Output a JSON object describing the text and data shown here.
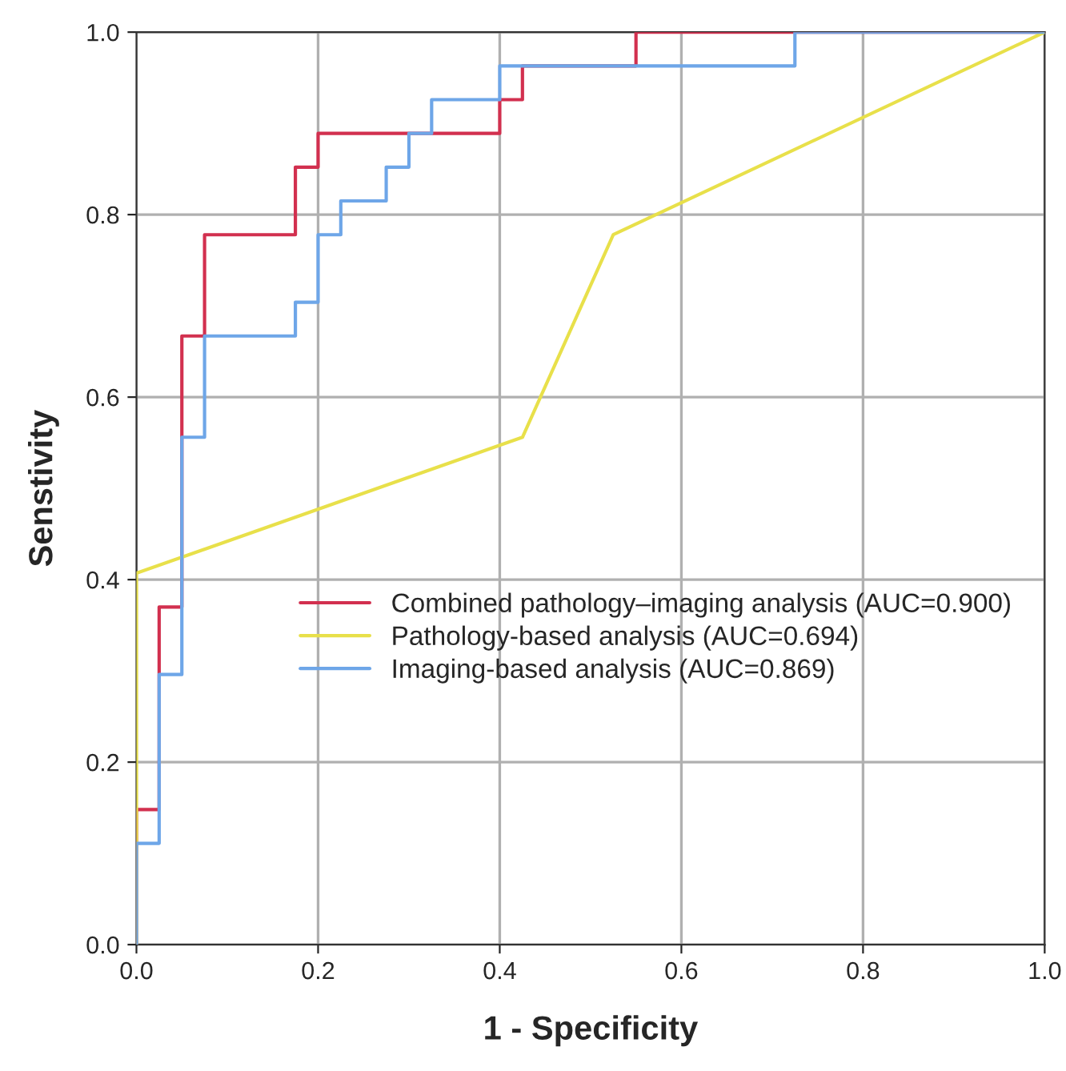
{
  "chart_data": {
    "type": "line",
    "xlabel": "1 - Specificity",
    "ylabel": "Senstivity",
    "xlim": [
      0.0,
      1.0
    ],
    "ylim": [
      0.0,
      1.0
    ],
    "xticks": [
      {
        "value": 0,
        "label": "0.0"
      },
      0.2,
      0.4,
      0.6,
      0.8,
      {
        "value": 1,
        "label": "1.0"
      }
    ],
    "yticks": [
      {
        "value": 0,
        "label": "0.0"
      },
      0.2,
      0.4,
      0.6,
      0.8,
      {
        "value": 1,
        "label": "1.0"
      }
    ],
    "grid": true,
    "legend": "bottom right",
    "line_style": "solid",
    "series": [
      {
        "name": "Combined pathology–imaging analysis (AUC=0.900)",
        "color": "#d2304f",
        "x": [
          0,
          0,
          0.025,
          0.025,
          0.05,
          0.05,
          0.075,
          0.075,
          0.175,
          0.175,
          0.2,
          0.2,
          0.4,
          0.4,
          0.425,
          0.425,
          0.55,
          0.55,
          1.0
        ],
        "values": [
          0,
          0.148,
          0.148,
          0.37,
          0.37,
          0.667,
          0.667,
          0.778,
          0.778,
          0.852,
          0.852,
          0.889,
          0.889,
          0.926,
          0.926,
          0.963,
          0.963,
          1.0,
          1.0
        ]
      },
      {
        "name": "Pathology-based analysis (AUC=0.694)",
        "color": "#e8e04a",
        "x": [
          0,
          0,
          0.425,
          0.525,
          1.0
        ],
        "values": [
          0,
          0.407,
          0.556,
          0.778,
          1.0
        ]
      },
      {
        "name": "Imaging-based analysis (AUC=0.869)",
        "color": "#6ea6e8",
        "x": [
          0,
          0,
          0.025,
          0.025,
          0.05,
          0.05,
          0.075,
          0.075,
          0.175,
          0.175,
          0.2,
          0.2,
          0.225,
          0.225,
          0.275,
          0.275,
          0.3,
          0.3,
          0.325,
          0.325,
          0.4,
          0.4,
          0.725,
          0.725,
          1.0
        ],
        "values": [
          0,
          0.111,
          0.111,
          0.296,
          0.296,
          0.556,
          0.556,
          0.667,
          0.667,
          0.704,
          0.704,
          0.778,
          0.778,
          0.815,
          0.815,
          0.852,
          0.852,
          0.889,
          0.889,
          0.926,
          0.926,
          0.963,
          0.963,
          1.0,
          1.0
        ]
      }
    ]
  }
}
